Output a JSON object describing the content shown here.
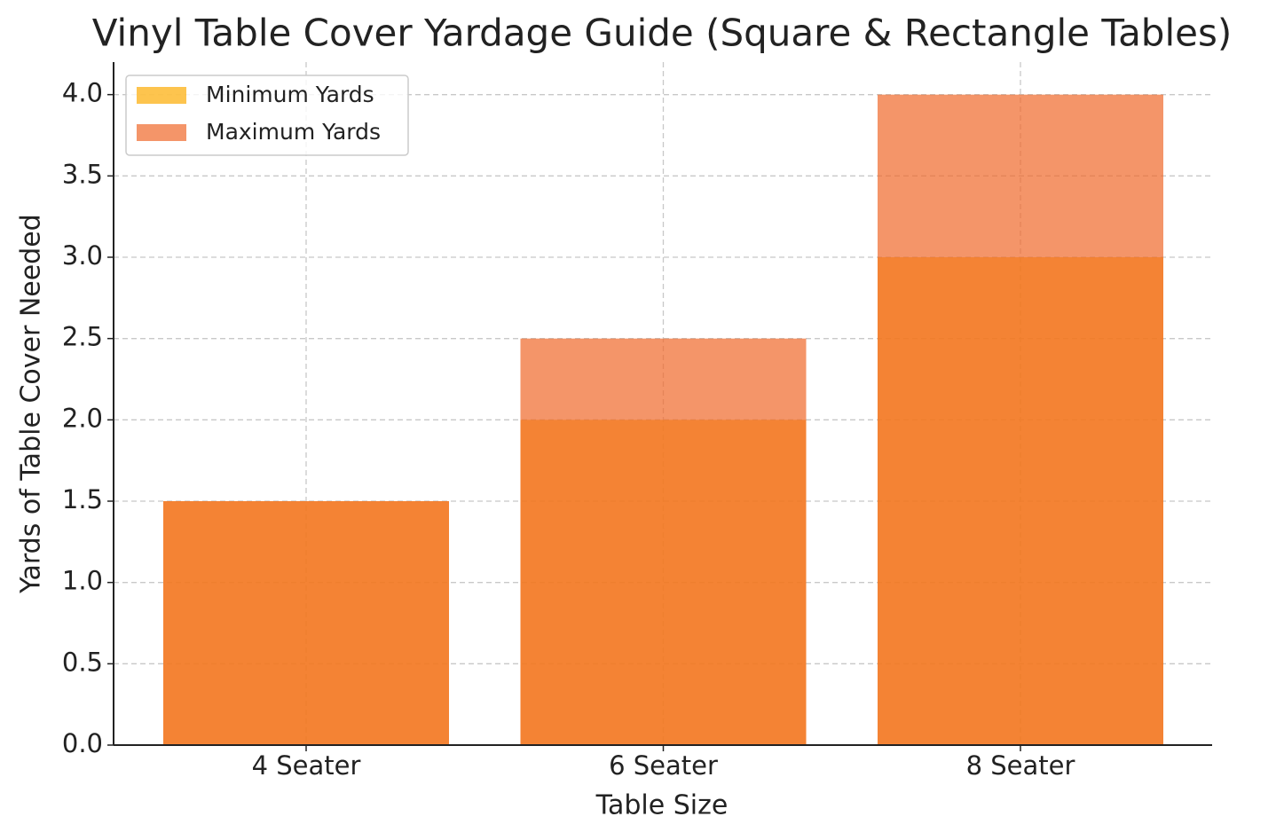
{
  "chart_data": {
    "type": "bar",
    "overlap": true,
    "title": "Vinyl Table Cover Yardage Guide (Square & Rectangle Tables)",
    "x_label": "Table Size",
    "y_label": "Yards of Table Cover Needed",
    "categories": [
      "4 Seater",
      "6 Seater",
      "8 Seater"
    ],
    "series": [
      {
        "name": "Minimum Yards",
        "color": "#fcab03",
        "values": [
          1.5,
          2,
          3
        ]
      },
      {
        "name": "Maximum Yards",
        "color": "#ef682a",
        "values": [
          1.5,
          2.5,
          4
        ]
      }
    ],
    "ylim": [
      0,
      4.2
    ],
    "yticks": [
      {
        "value": 0,
        "label": "0.0"
      },
      {
        "value": 0.5,
        "label": "0.5"
      },
      {
        "value": 1,
        "label": "1.0"
      },
      {
        "value": 1.5,
        "label": "1.5"
      },
      {
        "value": 2,
        "label": "2.0"
      },
      {
        "value": 2.5,
        "label": "2.5"
      },
      {
        "value": 3,
        "label": "3.0"
      },
      {
        "value": 3.5,
        "label": "3.5"
      },
      {
        "value": 4,
        "label": "4.0"
      }
    ],
    "grid": true,
    "legend": "upper left"
  }
}
